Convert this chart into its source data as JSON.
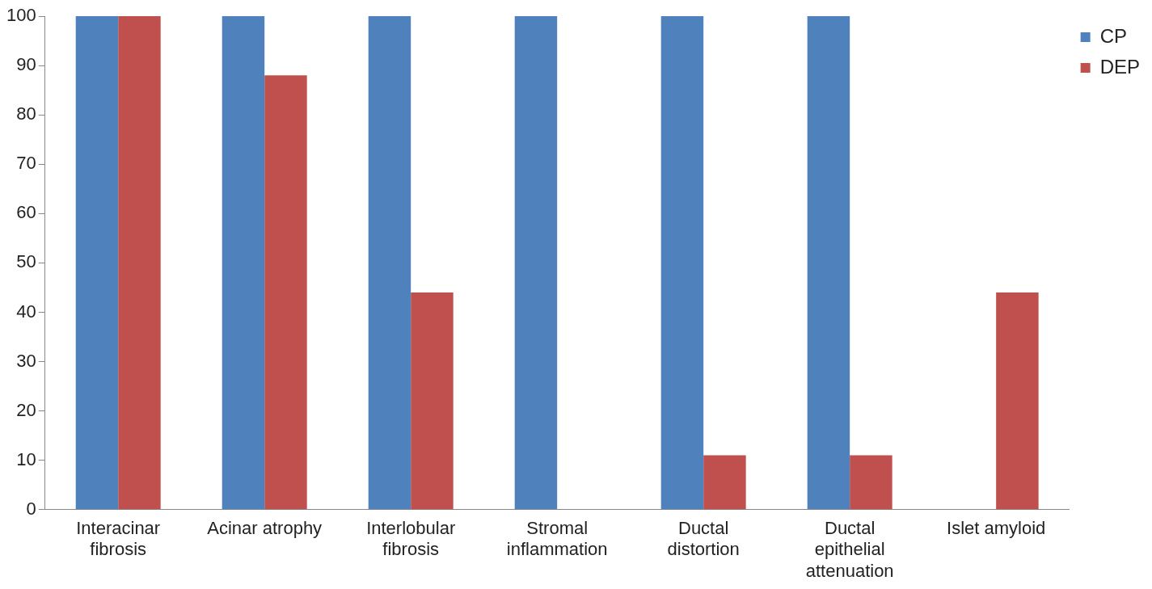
{
  "chart_data": {
    "type": "bar",
    "categories": [
      "Interacinar fibrosis",
      "Acinar atrophy",
      "Interlobular fibrosis",
      "Stromal inflammation",
      "Ductal distortion",
      "Ductal epithelial attenuation",
      "Islet amyloid"
    ],
    "series": [
      {
        "name": "CP",
        "color": "#4f81bd",
        "values": [
          100,
          100,
          100,
          100,
          100,
          100,
          0
        ]
      },
      {
        "name": "DEP",
        "color": "#c0504d",
        "values": [
          100,
          88,
          44,
          0,
          11,
          11,
          44
        ]
      }
    ],
    "ylim": [
      0,
      100
    ],
    "yticks": [
      0,
      10,
      20,
      30,
      40,
      50,
      60,
      70,
      80,
      90,
      100
    ],
    "grid": false,
    "legend": "top right"
  }
}
